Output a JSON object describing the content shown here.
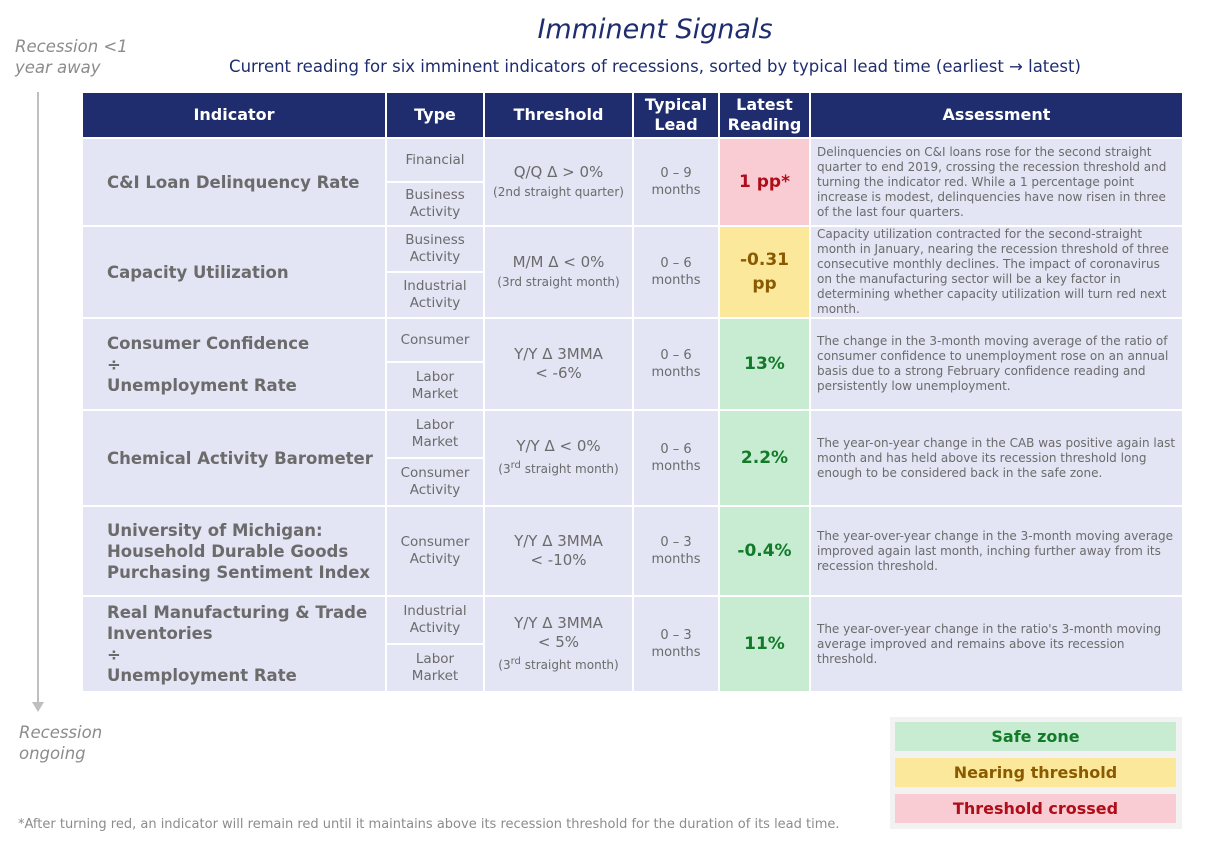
{
  "title": "Imminent Signals",
  "subtitle": "Current reading for six imminent indicators of recessions, sorted by typical lead time (earliest → latest)",
  "side_top": [
    "Recession <1",
    "year away"
  ],
  "side_bottom": [
    "Recession",
    "ongoing"
  ],
  "headers": {
    "indicator": "Indicator",
    "type": "Type",
    "threshold": "Threshold",
    "lead": [
      "Typical",
      "Lead"
    ],
    "reading": [
      "Latest",
      "Reading"
    ],
    "assessment": "Assessment"
  },
  "rows": [
    {
      "indicator": [
        "C&I Loan Delinquency Rate"
      ],
      "types": [
        [
          "Financial"
        ],
        [
          "Business",
          "Activity"
        ]
      ],
      "threshold": "Q/Q Δ > 0%",
      "threshold_note": "(2nd straight quarter)",
      "lead": [
        "0 – 9",
        "months"
      ],
      "reading": [
        "1 pp*"
      ],
      "status": "red",
      "assessment": "Delinquencies on C&I loans rose for the second straight quarter to end 2019, crossing the recession threshold and turning the indicator red. While a 1 percentage point increase is modest, delinquencies have now risen in three of the last four quarters."
    },
    {
      "indicator": [
        "Capacity Utilization"
      ],
      "types": [
        [
          "Business",
          "Activity"
        ],
        [
          "Industrial",
          "Activity"
        ]
      ],
      "threshold": "M/M Δ < 0%",
      "threshold_note": "(3rd straight month)",
      "lead": [
        "0 – 6",
        "months"
      ],
      "reading": [
        "-0.31",
        "pp"
      ],
      "status": "yellow",
      "assessment": "Capacity utilization contracted for the second-straight month in January, nearing the recession threshold of three consecutive monthly declines. The impact of coronavirus on the manufacturing sector will be a key factor in determining whether capacity utilization will turn red next month."
    },
    {
      "indicator": [
        "Consumer Confidence",
        "÷",
        "Unemployment Rate"
      ],
      "types": [
        [
          "Consumer"
        ],
        [
          "Labor",
          "Market"
        ]
      ],
      "threshold": "Y/Y Δ 3MMA",
      "threshold_line2": "< -6%",
      "lead": [
        "0 – 6",
        "months"
      ],
      "reading": [
        "13%"
      ],
      "status": "green",
      "assessment": "The change in the 3-month moving average of the ratio of consumer confidence to unemployment rose on an annual basis due to a strong February confidence reading and persistently low unemployment."
    },
    {
      "indicator": [
        "Chemical Activity Barometer"
      ],
      "types": [
        [
          "Labor",
          "Market"
        ],
        [
          "Consumer",
          "Activity"
        ]
      ],
      "threshold": "Y/Y Δ < 0%",
      "threshold_note_pre": "(3",
      "threshold_note_sup": "rd",
      "threshold_note_post": " straight month)",
      "lead": [
        "0 – 6",
        "months"
      ],
      "reading": [
        "2.2%"
      ],
      "status": "green",
      "assessment": "The year-on-year change in the CAB was positive again last month and has held above its recession threshold long enough to be considered back in the safe zone."
    },
    {
      "indicator": [
        "University of Michigan:",
        "Household Durable Goods",
        "Purchasing Sentiment Index"
      ],
      "types": [
        [
          "Consumer",
          "Activity"
        ]
      ],
      "threshold": "Y/Y Δ 3MMA",
      "threshold_line2": "< -10%",
      "lead": [
        "0 – 3",
        "months"
      ],
      "reading": [
        "-0.4%"
      ],
      "status": "green",
      "assessment": "The year-over-year change in the 3-month moving average improved again last month, inching further away from its recession threshold."
    },
    {
      "indicator": [
        "Real Manufacturing & Trade",
        "Inventories",
        "÷",
        "Unemployment Rate"
      ],
      "types": [
        [
          "Industrial",
          "Activity"
        ],
        [
          "Labor",
          "Market"
        ]
      ],
      "threshold": "Y/Y Δ 3MMA",
      "threshold_line2": "< 5%",
      "threshold_note_pre": "(3",
      "threshold_note_sup": "rd",
      "threshold_note_post": " straight month)",
      "lead": [
        "0 – 3",
        "months"
      ],
      "reading": [
        "11%"
      ],
      "status": "green",
      "assessment": "The year-over-year change in the ratio's 3-month moving average improved and remains above its recession threshold."
    }
  ],
  "legend": {
    "safe": "Safe zone",
    "near": "Nearing threshold",
    "crossed": "Threshold crossed"
  },
  "colors": {
    "header_bg": "#1f2d6e",
    "row_bg": "#e3e4f4",
    "safe": "#c7ecd2",
    "near": "#fbe89b",
    "crossed": "#f9cbd2"
  },
  "footnote": "*After turning red, an indicator will remain red until it maintains above its recession threshold for the duration of its lead time."
}
